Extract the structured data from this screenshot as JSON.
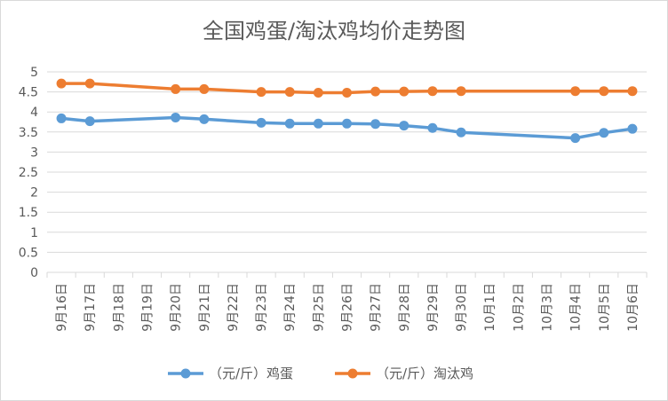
{
  "chart_data": {
    "type": "line",
    "title": "全国鸡蛋/淘汰鸡均价走势图",
    "categories": [
      "9月16日",
      "9月17日",
      "9月18日",
      "9月19日",
      "9月20日",
      "9月21日",
      "9月22日",
      "9月23日",
      "9月24日",
      "9月25日",
      "9月26日",
      "9月27日",
      "9月28日",
      "9月29日",
      "9月30日",
      "10月1日",
      "10月2日",
      "10月3日",
      "10月4日",
      "10月5日",
      "10月6日"
    ],
    "y_ticks": [
      "0",
      "0.5",
      "1",
      "1.5",
      "2",
      "2.5",
      "3",
      "3.5",
      "4",
      "4.5",
      "5"
    ],
    "ylim": [
      0,
      5
    ],
    "grid": true,
    "legend_position": "bottom",
    "series": [
      {
        "name": "（元/斤）鸡蛋",
        "color": "#5b9bd5",
        "values": [
          3.84,
          3.77,
          null,
          null,
          3.86,
          3.82,
          null,
          3.73,
          3.71,
          3.71,
          3.71,
          3.7,
          3.66,
          3.6,
          3.49,
          null,
          null,
          null,
          3.35,
          3.48,
          3.58
        ]
      },
      {
        "name": "（元/斤）淘汰鸡",
        "color": "#ed7d31",
        "values": [
          4.71,
          4.71,
          null,
          null,
          4.57,
          4.57,
          null,
          4.5,
          4.5,
          4.48,
          4.48,
          4.51,
          4.51,
          4.52,
          4.52,
          null,
          null,
          null,
          4.52,
          4.52,
          4.52
        ]
      }
    ]
  }
}
